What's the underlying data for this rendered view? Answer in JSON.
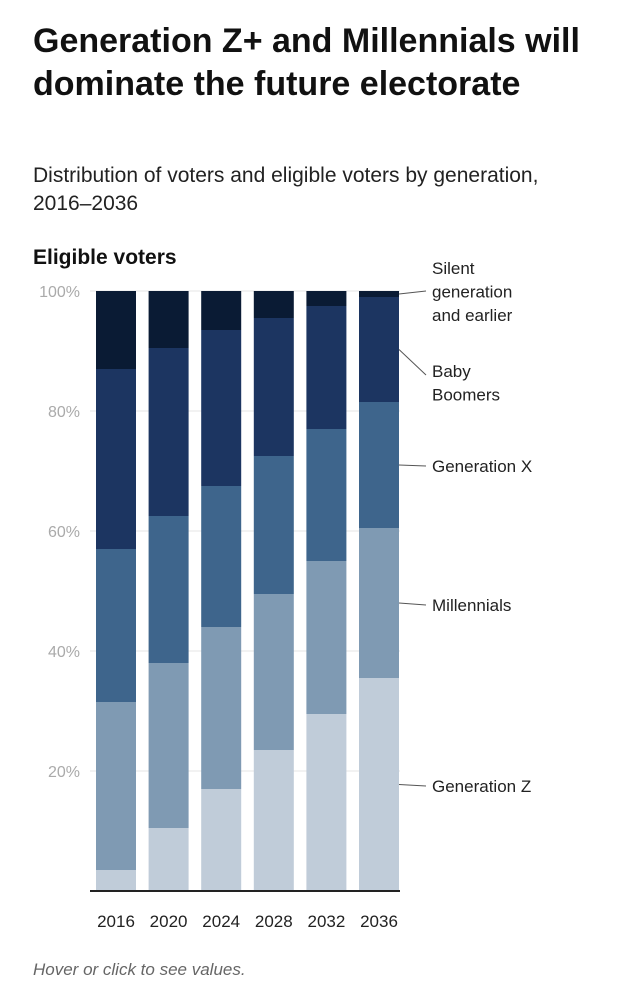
{
  "header": {
    "title": "Generation Z+ and Millennials will dominate the future electorate",
    "subtitle": "Distribution of voters and eligible voters by generation, 2016–2036",
    "chart_label": "Eligible voters"
  },
  "footer": {
    "note": "Hover or click to see values."
  },
  "chart_data": {
    "type": "bar",
    "stacked": true,
    "title": "Generation Z+ and Millennials will dominate the future electorate",
    "subtitle": "Distribution of voters and eligible voters by generation, 2016–2036",
    "ylabel": "Eligible voters",
    "xlabel": "",
    "ylim": [
      0,
      100
    ],
    "yticks": [
      20,
      40,
      60,
      80,
      100
    ],
    "ytick_labels": [
      "20%",
      "40%",
      "60%",
      "80%",
      "100%"
    ],
    "categories": [
      "2016",
      "2020",
      "2024",
      "2028",
      "2032",
      "2036"
    ],
    "series": [
      {
        "name": "Generation Z",
        "label_lines": [
          "Generation Z"
        ],
        "color": "#c0ccd9",
        "values": [
          3.5,
          10.5,
          17,
          23.5,
          29.5,
          35.5
        ]
      },
      {
        "name": "Millennials",
        "label_lines": [
          "Millennials"
        ],
        "color": "#7f9ab3",
        "values": [
          28,
          27.5,
          27,
          26,
          25.5,
          25
        ]
      },
      {
        "name": "Generation X",
        "label_lines": [
          "Generation X"
        ],
        "color": "#3e658c",
        "values": [
          25.5,
          24.5,
          23.5,
          23,
          22,
          21
        ]
      },
      {
        "name": "Baby Boomers",
        "label_lines": [
          "Baby",
          "Boomers"
        ],
        "color": "#1c3561",
        "values": [
          30,
          28,
          26,
          23,
          20.5,
          17.5
        ]
      },
      {
        "name": "Silent generation and earlier",
        "label_lines": [
          "Silent",
          "generation",
          "and earlier"
        ],
        "color": "#0a1b34",
        "values": [
          13,
          9.5,
          6.5,
          4.5,
          2.5,
          1
        ]
      }
    ]
  }
}
